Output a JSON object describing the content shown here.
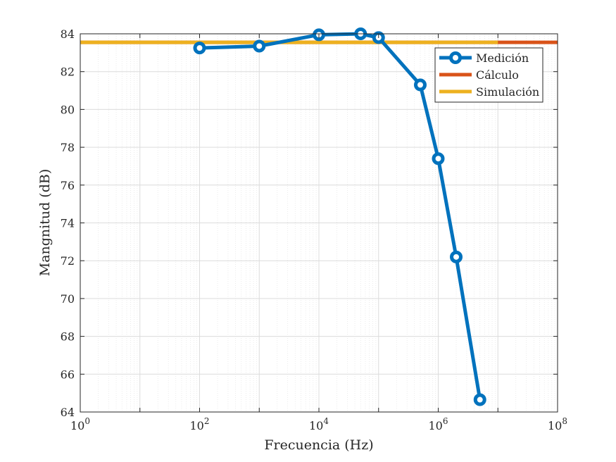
{
  "chart_data": {
    "type": "line",
    "xscale": "log",
    "xlabel": "Frecuencia (Hz)",
    "ylabel": "Mangnitud (dB)",
    "xlim": [
      1,
      100000000
    ],
    "ylim": [
      64,
      84
    ],
    "grid": true,
    "minor_grid": true,
    "legend_position": "top-right",
    "x_tick_labels": [
      {
        "base": "10",
        "exp": "0"
      },
      {
        "base": "10",
        "exp": "2"
      },
      {
        "base": "10",
        "exp": "4"
      },
      {
        "base": "10",
        "exp": "6"
      },
      {
        "base": "10",
        "exp": "8"
      }
    ],
    "y_ticks": [
      64,
      66,
      68,
      70,
      72,
      74,
      76,
      78,
      80,
      82,
      84
    ],
    "series": [
      {
        "name": "Medición",
        "color": "#0072BD",
        "marker": "circle",
        "x": [
          100,
          1000,
          10000,
          50000,
          100000,
          500000,
          1000000,
          2000000,
          5000000
        ],
        "y": [
          83.25,
          83.35,
          83.95,
          84.0,
          83.8,
          81.3,
          77.4,
          72.2,
          64.65
        ]
      },
      {
        "name": "Cálculo",
        "color": "#D95319",
        "marker": "none",
        "x": [
          1,
          100000000
        ],
        "y": [
          83.55,
          83.55
        ]
      },
      {
        "name": "Simulación",
        "color": "#EDB120",
        "marker": "none",
        "x": [
          1,
          10000000
        ],
        "y": [
          83.55,
          83.55
        ]
      }
    ]
  }
}
